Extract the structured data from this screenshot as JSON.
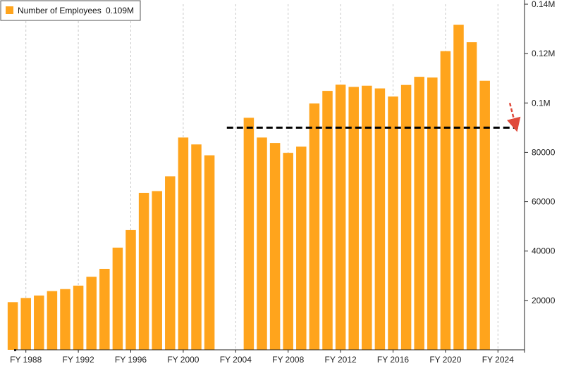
{
  "chart_data": {
    "type": "bar",
    "legend": {
      "label": "Number of Employees",
      "value": "0.109M",
      "placement": "top-left"
    },
    "colors": {
      "bar": "#ffa41c",
      "grid": "#c8c8c8",
      "reference_line": "#000000",
      "arrow": "#e04b3c",
      "axis": "#222222"
    },
    "x": [
      1987,
      1988,
      1989,
      1990,
      1991,
      1992,
      1993,
      1994,
      1995,
      1996,
      1997,
      1998,
      1999,
      2000,
      2001,
      2002,
      2003,
      2004,
      2005,
      2006,
      2007,
      2008,
      2009,
      2010,
      2011,
      2012,
      2013,
      2014,
      2015,
      2016,
      2017,
      2018,
      2019,
      2020,
      2021,
      2022,
      2023,
      2024
    ],
    "values": [
      19300,
      21000,
      22000,
      23800,
      24600,
      26000,
      29600,
      32800,
      41400,
      48500,
      63600,
      64300,
      70300,
      86000,
      83200,
      78800,
      null,
      null,
      94000,
      86000,
      83800,
      79800,
      82300,
      99800,
      104900,
      107400,
      106500,
      107000,
      105900,
      102600,
      107300,
      110600,
      110300,
      121000,
      131700,
      124600,
      109000,
      null
    ],
    "x_tick_labels": [
      {
        "x": 1988,
        "label": "FY 1988"
      },
      {
        "x": 1992,
        "label": "FY 1992"
      },
      {
        "x": 1996,
        "label": "FY 1996"
      },
      {
        "x": 2000,
        "label": "FY 2000"
      },
      {
        "x": 2004,
        "label": "FY 2004"
      },
      {
        "x": 2008,
        "label": "FY 2008"
      },
      {
        "x": 2012,
        "label": "FY 2012"
      },
      {
        "x": 2016,
        "label": "FY 2016"
      },
      {
        "x": 2020,
        "label": "FY 2020"
      },
      {
        "x": 2024,
        "label": "FY 2024"
      }
    ],
    "y_ticks": [
      {
        "value": 20000,
        "label": "20000"
      },
      {
        "value": 40000,
        "label": "40000"
      },
      {
        "value": 60000,
        "label": "60000"
      },
      {
        "value": 80000,
        "label": "80000"
      },
      {
        "value": 100000,
        "label": "0.1M"
      },
      {
        "value": 120000,
        "label": "0.12M"
      },
      {
        "value": 140000,
        "label": "0.14M"
      }
    ],
    "ylim": [
      0,
      140000
    ],
    "xlim": [
      1986,
      2026
    ],
    "y_axis_side": "right",
    "grid": "vertical-dashed",
    "reference_line": {
      "value": 90000,
      "x_start": 2003.3,
      "x_end": 2025.5,
      "style": "dashed"
    },
    "arrow": {
      "x": 2025.2,
      "from": 100000,
      "to": 91000,
      "style": "dashed"
    }
  }
}
